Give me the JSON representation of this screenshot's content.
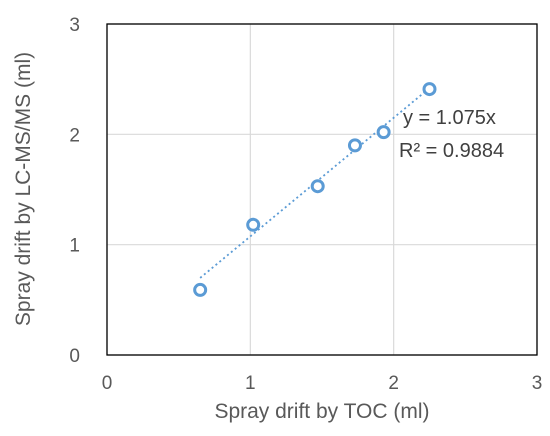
{
  "chart_data": {
    "type": "scatter",
    "xlabel": "Spray drift by TOC (ml)",
    "ylabel": "Spray drift by LC-MS/MS (ml)",
    "xlim": [
      0,
      3
    ],
    "ylim": [
      0,
      3
    ],
    "x_ticks": [
      "0",
      "1",
      "2",
      "3"
    ],
    "y_ticks": [
      "0",
      "1",
      "2",
      "3"
    ],
    "grid": true,
    "points": [
      {
        "x": 0.65,
        "y": 0.59
      },
      {
        "x": 1.02,
        "y": 1.18
      },
      {
        "x": 1.47,
        "y": 1.53
      },
      {
        "x": 1.73,
        "y": 1.9
      },
      {
        "x": 1.93,
        "y": 2.02
      },
      {
        "x": 2.25,
        "y": 2.41
      }
    ],
    "trendline": {
      "type": "linear",
      "slope": 1.075,
      "intercept": 0,
      "style": "dotted"
    },
    "annotations": {
      "equation": "y = 1.075x",
      "r_squared": "R² = 0.9884"
    },
    "colors": {
      "marker": "#5B9BD5",
      "grid": "#D9D9D9",
      "axis_text": "#595959"
    }
  }
}
